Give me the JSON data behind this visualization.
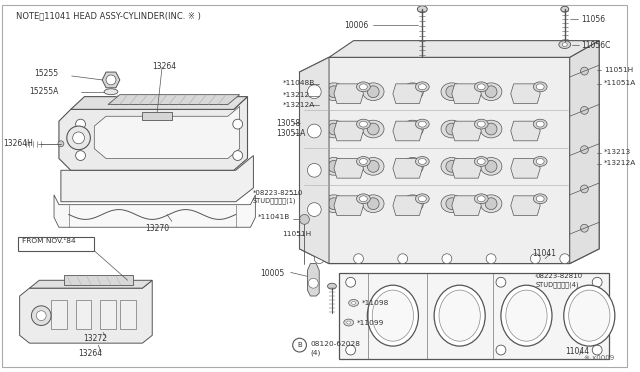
{
  "bg_color": "#ffffff",
  "line_color": "#4a4a4a",
  "text_color": "#222222",
  "note_text": "NOTE゛11041 HEAD ASSY-CYLINDER(INC. ※ )",
  "from_text": "FROM NOV.¹84",
  "diagram_number": "※ x0009",
  "lc": "#555555",
  "tc": "#333333"
}
